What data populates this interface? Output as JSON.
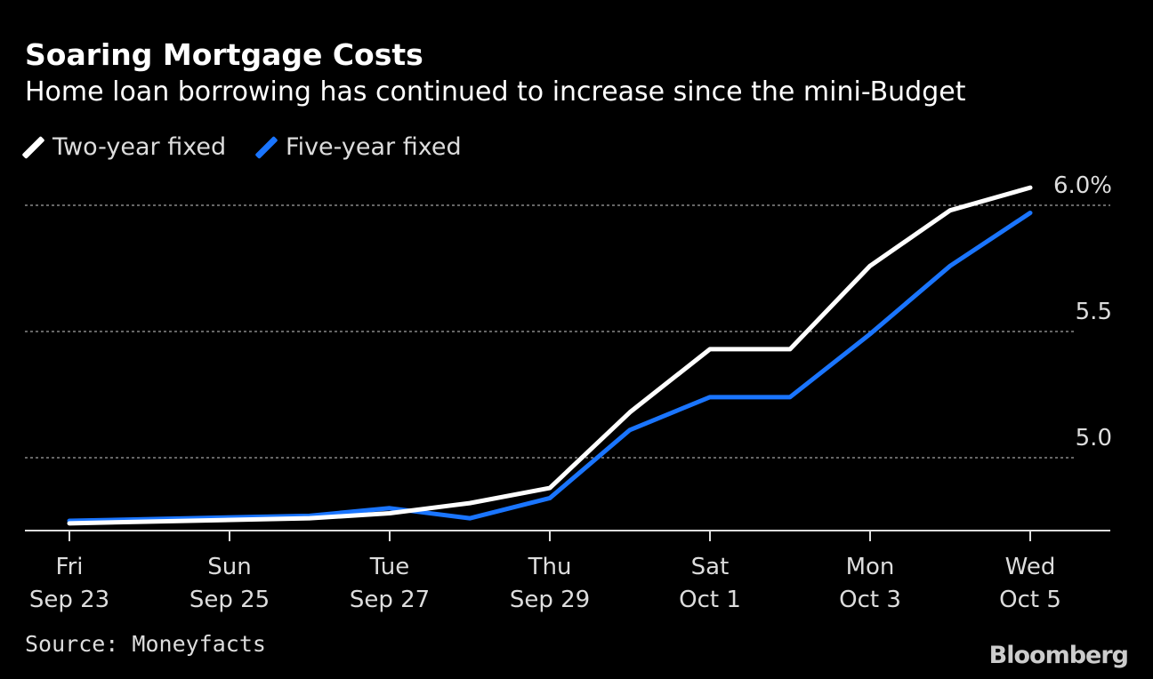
{
  "chart_data": {
    "type": "line",
    "title": "Soaring Mortgage Costs",
    "subtitle": "Home loan borrowing has continued to increase since the mini-Budget",
    "x": [
      "2022-09-23",
      "2022-09-26",
      "2022-09-27",
      "2022-09-28",
      "2022-09-29",
      "2022-09-30",
      "2022-10-01",
      "2022-10-02",
      "2022-10-03",
      "2022-10-04",
      "2022-10-05"
    ],
    "series": [
      {
        "name": "Two-year fixed",
        "color": "#ffffff",
        "values": [
          4.74,
          4.76,
          4.78,
          4.82,
          4.88,
          5.18,
          5.43,
          5.43,
          5.76,
          5.98,
          6.07
        ]
      },
      {
        "name": "Five-year fixed",
        "color": "#1a75ff",
        "values": [
          4.75,
          4.77,
          4.8,
          4.76,
          4.84,
          5.11,
          5.24,
          5.24,
          5.49,
          5.76,
          5.97
        ]
      }
    ],
    "x_ticks": [
      {
        "date": "2022-09-23",
        "line1": "Fri",
        "line2": "Sep 23"
      },
      {
        "date": "2022-09-25",
        "line1": "Sun",
        "line2": "Sep 25"
      },
      {
        "date": "2022-09-27",
        "line1": "Tue",
        "line2": "Sep 27"
      },
      {
        "date": "2022-09-29",
        "line1": "Thu",
        "line2": "Sep 29"
      },
      {
        "date": "2022-10-01",
        "line1": "Sat",
        "line2": "Oct 1"
      },
      {
        "date": "2022-10-03",
        "line1": "Mon",
        "line2": "Oct 3"
      },
      {
        "date": "2022-10-05",
        "line1": "Wed",
        "line2": "Oct 5"
      }
    ],
    "y_ticks": [
      {
        "value": 5.0,
        "label": "5.0"
      },
      {
        "value": 5.5,
        "label": "5.5"
      },
      {
        "value": 6.0,
        "label": "6.0%"
      }
    ],
    "ylim": [
      4.71,
      6.2
    ],
    "xlim": [
      "2022-09-23",
      "2022-10-05"
    ],
    "grid": "horizontal dotted",
    "legend": "top-left",
    "source": "Source: Moneyfacts",
    "brand": "Bloomberg"
  }
}
